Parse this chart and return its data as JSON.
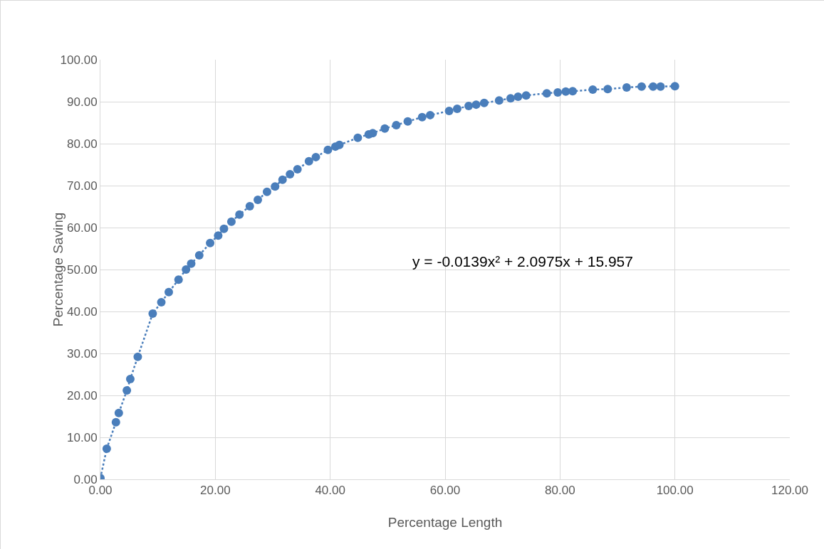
{
  "chart_data": {
    "type": "scatter",
    "xlabel": "Percentage Length",
    "ylabel": "Percentage Saving",
    "annotations": [
      "y = -0.0139x² + 2.0975x + 15.957"
    ],
    "xlim": [
      0,
      120
    ],
    "ylim": [
      0,
      100
    ],
    "xticks": [
      {
        "value": 0,
        "label": "0.00"
      },
      {
        "value": 20,
        "label": "20.00"
      },
      {
        "value": 40,
        "label": "40.00"
      },
      {
        "value": 60,
        "label": "60.00"
      },
      {
        "value": 80,
        "label": "80.00"
      },
      {
        "value": 100,
        "label": "100.00"
      },
      {
        "value": 120,
        "label": "120.00"
      }
    ],
    "yticks": [
      {
        "value": 0,
        "label": "0.00"
      },
      {
        "value": 10,
        "label": "10.00"
      },
      {
        "value": 20,
        "label": "20.00"
      },
      {
        "value": 30,
        "label": "30.00"
      },
      {
        "value": 40,
        "label": "40.00"
      },
      {
        "value": 50,
        "label": "50.00"
      },
      {
        "value": 60,
        "label": "60.00"
      },
      {
        "value": 70,
        "label": "70.00"
      },
      {
        "value": 80,
        "label": "80.00"
      },
      {
        "value": 90,
        "label": "90.00"
      },
      {
        "value": 100,
        "label": "100.00"
      }
    ],
    "grid": true,
    "marker": "circle",
    "x": [
      0,
      1.1,
      2.7,
      3.2,
      4.6,
      5.2,
      6.5,
      9.1,
      10.6,
      11.9,
      13.6,
      14.9,
      15.8,
      17.2,
      19.1,
      20.5,
      21.5,
      22.8,
      24.2,
      26,
      27.4,
      29,
      30.4,
      31.7,
      33,
      34.3,
      36.3,
      37.5,
      39.6,
      40.9,
      41.6,
      44.8,
      46.7,
      47.4,
      49.5,
      51.5,
      53.5,
      56,
      57.4,
      60.7,
      62.1,
      64.1,
      65.4,
      66.8,
      69.4,
      71.4,
      72.7,
      74.1,
      77.7,
      79.6,
      81,
      82.2,
      85.7,
      88.3,
      91.6,
      94.2,
      96.2,
      97.5,
      100
    ],
    "series": [
      {
        "type": "line",
        "line_style": "dotted",
        "marker": "none",
        "color": "#4a7ebb",
        "values": [
          0.3,
          7.3,
          13.6,
          15.8,
          21.2,
          23.9,
          29.2,
          39.5,
          42.2,
          44.6,
          47.6,
          50,
          51.4,
          53.4,
          56.3,
          58.1,
          59.7,
          61.4,
          63.1,
          65.1,
          66.6,
          68.5,
          69.8,
          71.4,
          72.7,
          73.9,
          75.8,
          76.8,
          78.5,
          79.3,
          79.7,
          81.4,
          82.2,
          82.5,
          83.6,
          84.4,
          85.3,
          86.3,
          86.8,
          87.8,
          88.3,
          89,
          89.3,
          89.7,
          90.3,
          90.8,
          91.2,
          91.5,
          92,
          92.2,
          92.4,
          92.5,
          92.9,
          93,
          93.4,
          93.6,
          93.6,
          93.6,
          93.7
        ]
      },
      {
        "color": "#4a7ebb",
        "values": [
          0.3,
          7.3,
          13.6,
          15.8,
          21.2,
          23.9,
          29.2,
          39.5,
          42.2,
          44.6,
          47.6,
          50,
          51.4,
          53.4,
          56.3,
          58.1,
          59.7,
          61.4,
          63.1,
          65.1,
          66.6,
          68.5,
          69.8,
          71.4,
          72.7,
          73.9,
          75.8,
          76.8,
          78.5,
          79.3,
          79.7,
          81.4,
          82.2,
          82.5,
          83.6,
          84.4,
          85.3,
          86.3,
          86.8,
          87.8,
          88.3,
          89,
          89.3,
          89.7,
          90.3,
          90.8,
          91.2,
          91.5,
          92,
          92.2,
          92.4,
          92.5,
          92.9,
          93,
          93.4,
          93.6,
          93.6,
          93.6,
          93.7
        ]
      }
    ]
  }
}
